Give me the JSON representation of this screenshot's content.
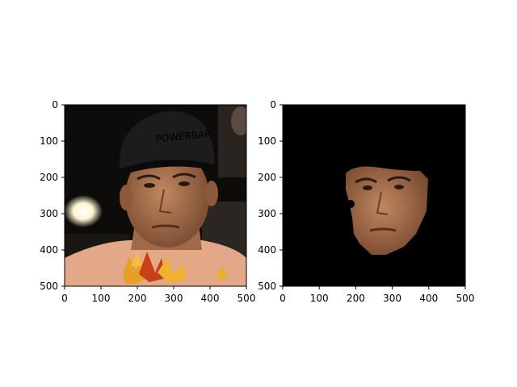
{
  "figure": {
    "panels": [
      {
        "id": "left",
        "content": "original photo: man in black POWERBAR cap, autumn leaves at bottom",
        "cap_text": "POWERBAR",
        "x_ticks": [
          "0",
          "100",
          "200",
          "300",
          "400",
          "500"
        ],
        "y_ticks": [
          "0",
          "100",
          "200",
          "300",
          "400",
          "500"
        ]
      },
      {
        "id": "right",
        "content": "segmented face on black background",
        "x_ticks": [
          "0",
          "100",
          "200",
          "300",
          "400",
          "500"
        ],
        "y_ticks": [
          "0",
          "100",
          "200",
          "300",
          "400",
          "500"
        ]
      }
    ]
  },
  "colors": {
    "skin": "#b07a55",
    "skin_dark": "#8a5a3a",
    "cap": "#1c1c1c",
    "background_dark": "#0e0c0a",
    "leaf_orange": "#e8a020",
    "leaf_red": "#c8401a",
    "mask_bg": "#000000"
  }
}
